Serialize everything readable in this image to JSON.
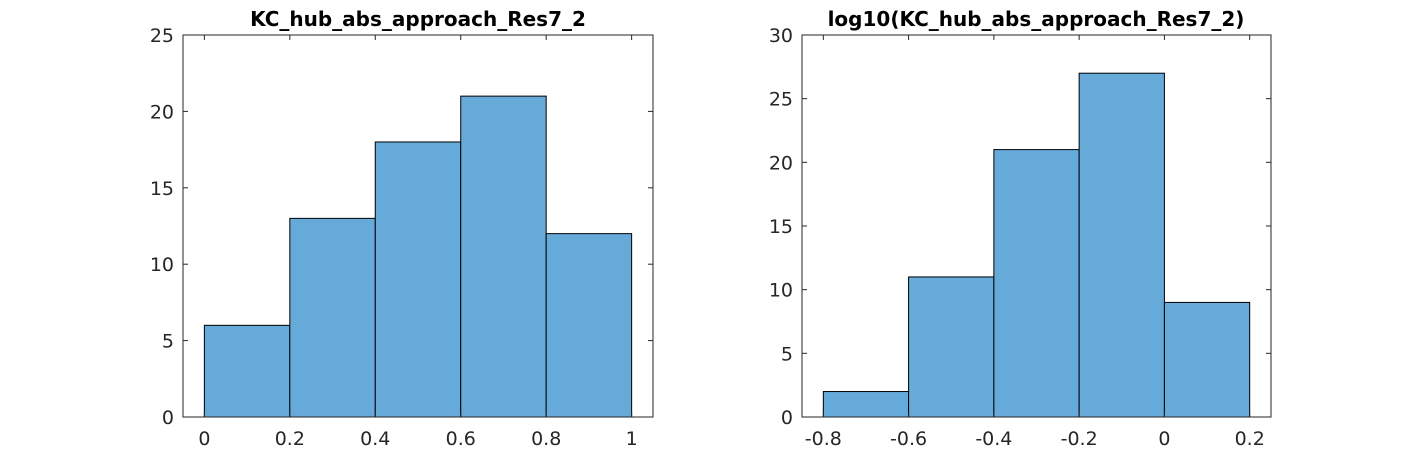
{
  "chart_data": [
    {
      "type": "bar",
      "title": "KC_hub_abs_approach_Res7_2",
      "bin_edges": [
        0,
        0.2,
        0.4,
        0.6,
        0.8,
        1.0
      ],
      "values": [
        6,
        13,
        18,
        21,
        12
      ],
      "xlim": [
        -0.05,
        1.05
      ],
      "ylim": [
        0,
        25
      ],
      "xticks": [
        0,
        0.2,
        0.4,
        0.6,
        0.8,
        1
      ],
      "xtick_labels": [
        "0",
        "0.2",
        "0.4",
        "0.6",
        "0.8",
        "1"
      ],
      "yticks": [
        0,
        5,
        10,
        15,
        20,
        25
      ],
      "ytick_labels": [
        "0",
        "5",
        "10",
        "15",
        "20",
        "25"
      ],
      "bar_color": "#66aad9",
      "grid": false
    },
    {
      "type": "bar",
      "title": "log10(KC_hub_abs_approach_Res7_2)",
      "bin_edges": [
        -0.8,
        -0.6,
        -0.4,
        -0.2,
        0,
        0.2
      ],
      "values": [
        2,
        11,
        21,
        27,
        9
      ],
      "xlim": [
        -0.85,
        0.25
      ],
      "ylim": [
        0,
        30
      ],
      "xticks": [
        -0.8,
        -0.6,
        -0.4,
        -0.2,
        0,
        0.2
      ],
      "xtick_labels": [
        "-0.8",
        "-0.6",
        "-0.4",
        "-0.2",
        "0",
        "0.2"
      ],
      "yticks": [
        0,
        5,
        10,
        15,
        20,
        25,
        30
      ],
      "ytick_labels": [
        "0",
        "5",
        "10",
        "15",
        "20",
        "25",
        "30"
      ],
      "bar_color": "#66aad9",
      "grid": false
    }
  ]
}
